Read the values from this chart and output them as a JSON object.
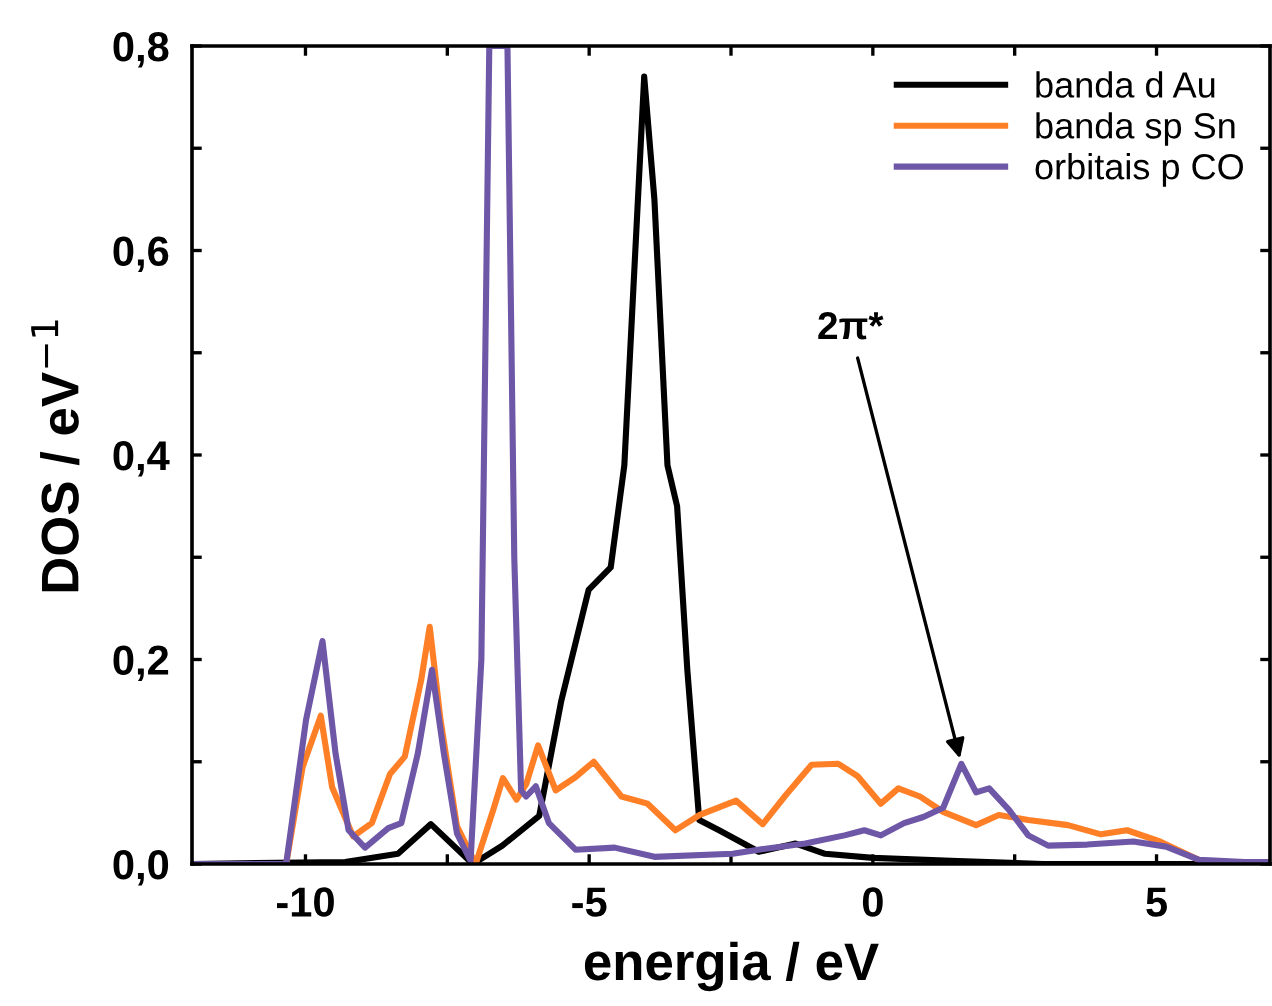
{
  "chart_data": {
    "type": "line",
    "xlabel": "energia / eV",
    "ylabel": "DOS / eV$^{−1}$",
    "xlim": [
      -12,
      7
    ],
    "ylim": [
      0,
      0.8
    ],
    "xticks": [
      -10,
      {
        "value": -7.5,
        "label": null
      },
      -5,
      {
        "value": -2.5,
        "label": null
      },
      0,
      {
        "value": 2.5,
        "label": null
      },
      5
    ],
    "yticks": [
      {
        "value": 0,
        "label": "0,0"
      },
      {
        "value": 0.1,
        "label": null
      },
      {
        "value": 0.2,
        "label": "0,2"
      },
      {
        "value": 0.3,
        "label": null
      },
      {
        "value": 0.4,
        "label": "0,4"
      },
      {
        "value": 0.5,
        "label": null
      },
      {
        "value": 0.6,
        "label": "0,6"
      },
      {
        "value": 0.7,
        "label": null
      },
      {
        "value": 0.8,
        "label": "0,8"
      }
    ],
    "legend": "top right",
    "grid": false,
    "marker": "none",
    "line_style": "solid",
    "annotations": [
      {
        "text": "2π*",
        "x": 1.56,
        "y": 0.098
      }
    ],
    "series": [
      {
        "name": "banda d Au",
        "color": "#000000",
        "x": [
          -12,
          -9.3,
          -8.37,
          -7.79,
          -7.05,
          -6.53,
          -5.88,
          -5.49,
          -5.01,
          -4.62,
          -4.38,
          -4.2,
          -4.03,
          -3.85,
          -3.62,
          -3.45,
          -3.27,
          -3.06,
          -2.71,
          -2.01,
          -1.36,
          -0.84,
          0,
          1.5,
          3,
          7
        ],
        "values": [
          0,
          0.002,
          0.01,
          0.039,
          0,
          0.018,
          0.047,
          0.16,
          0.268,
          0.29,
          0.39,
          0.585,
          0.77,
          0.65,
          0.39,
          0.35,
          0.19,
          0.043,
          0.033,
          0.012,
          0.02,
          0.01,
          0.006,
          0.003,
          0,
          0
        ]
      },
      {
        "name": "banda sp Sn",
        "color": "#ff7f27",
        "x": [
          -12,
          -10.34,
          -10.05,
          -9.73,
          -9.53,
          -9.16,
          -8.83,
          -8.51,
          -8.25,
          -7.96,
          -7.81,
          -7.62,
          -7.33,
          -7.0,
          -6.69,
          -6.52,
          -6.28,
          -6.11,
          -5.9,
          -5.59,
          -5.24,
          -4.92,
          -4.43,
          -3.97,
          -3.48,
          -3.05,
          -2.41,
          -1.94,
          -1.54,
          -1.08,
          -0.61,
          -0.27,
          0.14,
          0.45,
          0.83,
          1.24,
          1.82,
          2.22,
          2.74,
          3.44,
          4.02,
          4.48,
          5.06,
          5.75
        ],
        "values": [
          0,
          0,
          0.095,
          0.145,
          0.075,
          0.027,
          0.04,
          0.088,
          0.105,
          0.18,
          0.232,
          0.141,
          0.037,
          0,
          0.053,
          0.084,
          0.063,
          0.078,
          0.116,
          0.072,
          0.085,
          0.1,
          0.066,
          0.059,
          0.033,
          0.048,
          0.062,
          0.039,
          0.067,
          0.097,
          0.098,
          0.086,
          0.059,
          0.074,
          0.066,
          0.051,
          0.038,
          0.048,
          0.043,
          0.038,
          0.029,
          0.033,
          0.022,
          0.004
        ]
      },
      {
        "name": "orbitais p CO",
        "color": "#6f57a8",
        "x": [
          -12,
          -10.34,
          -9.99,
          -9.7,
          -9.47,
          -9.24,
          -8.95,
          -8.54,
          -8.31,
          -8.02,
          -7.77,
          -7.56,
          -7.33,
          -7.09,
          -6.9,
          -6.76,
          -6.44,
          -6.32,
          -6.2,
          -6.11,
          -5.94,
          -5.71,
          -5.24,
          -4.55,
          -3.85,
          -2.47,
          -1.89,
          -1.19,
          -0.5,
          -0.15,
          0.14,
          0.55,
          0.89,
          1.24,
          1.56,
          1.82,
          2.05,
          2.4,
          2.74,
          3.09,
          3.78,
          4.59,
          5.17,
          5.75,
          6.56,
          7
        ],
        "values": [
          0,
          0,
          0.141,
          0.218,
          0.108,
          0.033,
          0.016,
          0.035,
          0.04,
          0.108,
          0.19,
          0.108,
          0.03,
          0.003,
          0.2,
          0.8,
          0.8,
          0.3,
          0.072,
          0.066,
          0.076,
          0.04,
          0.014,
          0.016,
          0.007,
          0.01,
          0.015,
          0.02,
          0.028,
          0.033,
          0.028,
          0.04,
          0.046,
          0.055,
          0.098,
          0.07,
          0.074,
          0.053,
          0.028,
          0.018,
          0.019,
          0.022,
          0.017,
          0.004,
          0.002,
          0.002
        ]
      }
    ]
  }
}
